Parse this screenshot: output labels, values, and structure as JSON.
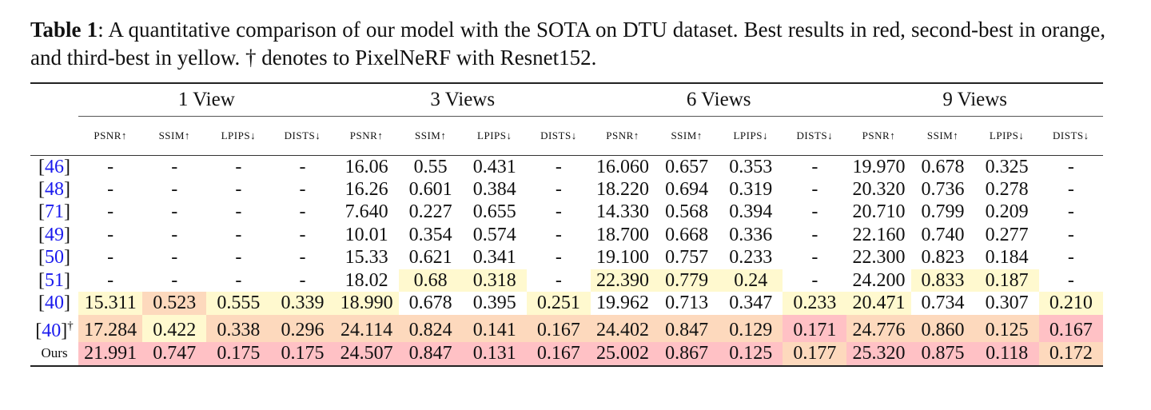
{
  "caption": {
    "label": "Table 1",
    "text": ": A quantitative comparison of our model with the SOTA on DTU dataset. Best results in red, second-best in orange, and third-best in yellow. † denotes to PixelNeRF with Resnet152."
  },
  "colors": {
    "R": "#ffc1c5",
    "O": "#fdd9bd",
    "Y": "#fff9cf"
  },
  "groups": [
    "1 View",
    "3 Views",
    "6 Views",
    "9 Views"
  ],
  "metrics": [
    "PSNR↑",
    "SSIM↑",
    "LPIPS↓",
    "DISTS↓"
  ],
  "rows": [
    {
      "ref": "46",
      "dagger": "",
      "values": [
        "-",
        "-",
        "-",
        "-",
        "16.06",
        "0.55",
        "0.431",
        "-",
        "16.060",
        "0.657",
        "0.353",
        "-",
        "19.970",
        "0.678",
        "0.325",
        "-"
      ],
      "colors": [
        "",
        "",
        "",
        "",
        "",
        "",
        "",
        "",
        "",
        "",
        "",
        "",
        "",
        "",
        "",
        ""
      ]
    },
    {
      "ref": "48",
      "dagger": "",
      "values": [
        "-",
        "-",
        "-",
        "-",
        "16.26",
        "0.601",
        "0.384",
        "-",
        "18.220",
        "0.694",
        "0.319",
        "-",
        "20.320",
        "0.736",
        "0.278",
        "-"
      ],
      "colors": [
        "",
        "",
        "",
        "",
        "",
        "",
        "",
        "",
        "",
        "",
        "",
        "",
        "",
        "",
        "",
        ""
      ]
    },
    {
      "ref": "71",
      "dagger": "",
      "values": [
        "-",
        "-",
        "-",
        "-",
        "7.640",
        "0.227",
        "0.655",
        "-",
        "14.330",
        "0.568",
        "0.394",
        "-",
        "20.710",
        "0.799",
        "0.209",
        "-"
      ],
      "colors": [
        "",
        "",
        "",
        "",
        "",
        "",
        "",
        "",
        "",
        "",
        "",
        "",
        "",
        "",
        "",
        ""
      ]
    },
    {
      "ref": "49",
      "dagger": "",
      "values": [
        "-",
        "-",
        "-",
        "-",
        "10.01",
        "0.354",
        "0.574",
        "-",
        "18.700",
        "0.668",
        "0.336",
        "-",
        "22.160",
        "0.740",
        "0.277",
        "-"
      ],
      "colors": [
        "",
        "",
        "",
        "",
        "",
        "",
        "",
        "",
        "",
        "",
        "",
        "",
        "",
        "",
        "",
        ""
      ]
    },
    {
      "ref": "50",
      "dagger": "",
      "values": [
        "-",
        "-",
        "-",
        "-",
        "15.33",
        "0.621",
        "0.341",
        "-",
        "19.100",
        "0.757",
        "0.233",
        "-",
        "22.300",
        "0.823",
        "0.184",
        "-"
      ],
      "colors": [
        "",
        "",
        "",
        "",
        "",
        "",
        "",
        "",
        "",
        "",
        "",
        "",
        "",
        "",
        "",
        ""
      ]
    },
    {
      "ref": "51",
      "dagger": "",
      "values": [
        "-",
        "-",
        "-",
        "-",
        "18.02",
        "0.68",
        "0.318",
        "-",
        "22.390",
        "0.779",
        "0.24",
        "-",
        "24.200",
        "0.833",
        "0.187",
        "-"
      ],
      "colors": [
        "",
        "",
        "",
        "",
        "",
        "Y",
        "Y",
        "",
        "Y",
        "Y",
        "Y",
        "",
        "",
        "Y",
        "Y",
        ""
      ]
    },
    {
      "ref": "40",
      "dagger": "",
      "values": [
        "15.311",
        "0.523",
        "0.555",
        "0.339",
        "18.990",
        "0.678",
        "0.395",
        "0.251",
        "19.962",
        "0.713",
        "0.347",
        "0.233",
        "20.471",
        "0.734",
        "0.307",
        "0.210"
      ],
      "colors": [
        "Y",
        "O",
        "Y",
        "Y",
        "Y",
        "",
        "",
        "Y",
        "",
        "",
        "",
        "Y",
        "Y",
        "",
        "",
        "Y"
      ]
    },
    {
      "ref": "40",
      "dagger": "†",
      "values": [
        "17.284",
        "0.422",
        "0.338",
        "0.296",
        "24.114",
        "0.824",
        "0.141",
        "0.167",
        "24.402",
        "0.847",
        "0.129",
        "0.171",
        "24.776",
        "0.860",
        "0.125",
        "0.167"
      ],
      "colors": [
        "O",
        "Y",
        "O",
        "O",
        "O",
        "O",
        "O",
        "O",
        "O",
        "O",
        "O",
        "R",
        "O",
        "O",
        "O",
        "R"
      ]
    },
    {
      "ref": "",
      "label": "Ours",
      "dagger": "",
      "values": [
        "21.991",
        "0.747",
        "0.175",
        "0.175",
        "24.507",
        "0.847",
        "0.131",
        "0.167",
        "25.002",
        "0.867",
        "0.125",
        "0.177",
        "25.320",
        "0.875",
        "0.118",
        "0.172"
      ],
      "colors": [
        "R",
        "R",
        "R",
        "R",
        "R",
        "R",
        "R",
        "R",
        "R",
        "R",
        "R",
        "O",
        "R",
        "R",
        "R",
        "O"
      ]
    }
  ]
}
